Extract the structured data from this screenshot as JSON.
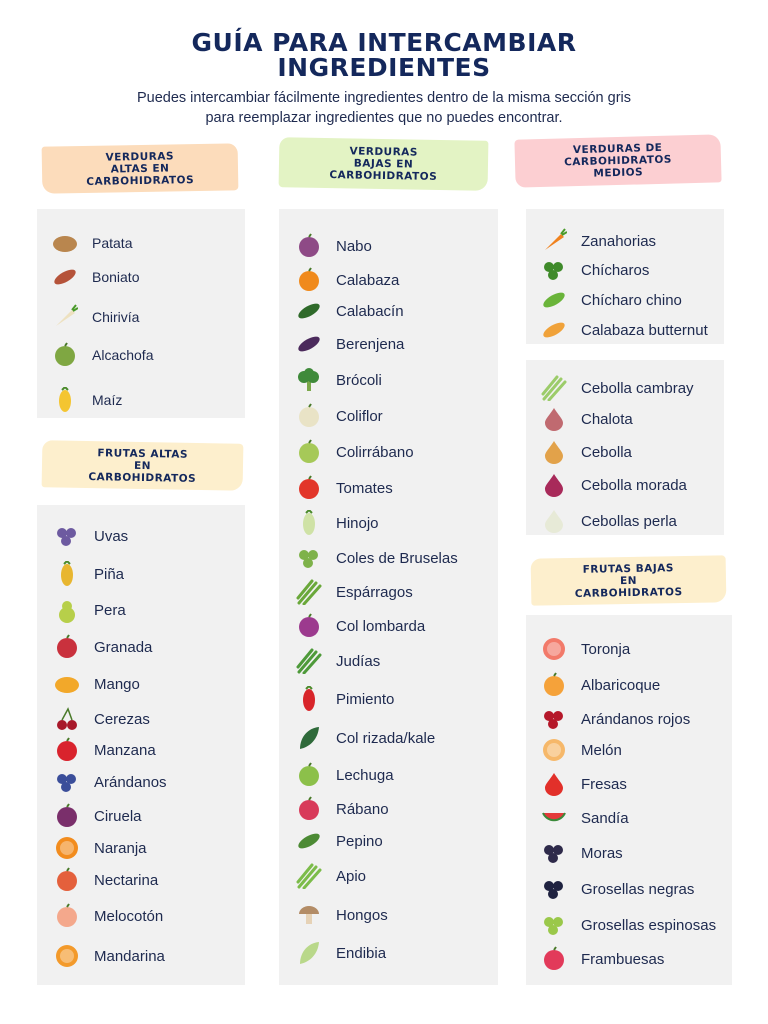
{
  "title": "GUÍA PARA INTERCAMBIAR\nINGREDIENTES",
  "title_line1": "GUÍA PARA INTERCAMBIAR",
  "title_line2": "INGREDIENTES",
  "subtitle_line1": "Puedes intercambiar fácilmente ingredientes dentro de la misma sección gris",
  "subtitle_line2": "para reemplazar ingredientes que no puedes encontrar.",
  "sections": {
    "verduras_altas": {
      "tag": "VERDURAS\nALTAS EN\nCARBOHIDRATOS",
      "items": [
        {
          "label": "Patata",
          "icon": "potato-icon",
          "color": "#b9864e"
        },
        {
          "label": "Boniato",
          "icon": "sweet-potato-icon",
          "color": "#b5533a"
        },
        {
          "label": "Chirivía",
          "icon": "parsnip-icon",
          "color": "#ede1c0"
        },
        {
          "label": "Alcachofa",
          "icon": "artichoke-icon",
          "color": "#7fa742"
        },
        {
          "label": "Maíz",
          "icon": "corn-icon",
          "color": "#f4c531"
        }
      ]
    },
    "frutas_altas": {
      "tag": "FRUTAS ALTAS\nEN\nCARBOHIDRATOS",
      "items": [
        {
          "label": "Uvas",
          "icon": "grapes-icon",
          "color": "#6d5aa0"
        },
        {
          "label": "Piña",
          "icon": "pineapple-icon",
          "color": "#e8b630"
        },
        {
          "label": "Pera",
          "icon": "pear-icon",
          "color": "#b7cf4a"
        },
        {
          "label": "Granada",
          "icon": "pomegranate-icon",
          "color": "#c9313d"
        },
        {
          "label": "Mango",
          "icon": "mango-icon",
          "color": "#f2a82a"
        },
        {
          "label": "Cerezas",
          "icon": "cherries-icon",
          "color": "#a8182a"
        },
        {
          "label": "Manzana",
          "icon": "apple-icon",
          "color": "#d9232d"
        },
        {
          "label": "Arándanos",
          "icon": "blueberries-icon",
          "color": "#3b4e9a"
        },
        {
          "label": "Ciruela",
          "icon": "plum-icon",
          "color": "#7a2f6b"
        },
        {
          "label": "Naranja",
          "icon": "orange-icon",
          "color": "#f28c1e"
        },
        {
          "label": "Nectarina",
          "icon": "nectarine-icon",
          "color": "#e4603c"
        },
        {
          "label": "Melocotón",
          "icon": "peach-icon",
          "color": "#f4a88c"
        },
        {
          "label": "Mandarina",
          "icon": "mandarin-icon",
          "color": "#f39a2b"
        }
      ]
    },
    "verduras_bajas": {
      "tag": "VERDURAS\nBAJAS EN\nCARBOHIDRATOS",
      "items": [
        {
          "label": "Nabo",
          "icon": "turnip-icon",
          "color": "#8e4a86"
        },
        {
          "label": "Calabaza",
          "icon": "pumpkin-icon",
          "color": "#f08a1c"
        },
        {
          "label": "Calabacín",
          "icon": "zucchini-icon",
          "color": "#2f6a2a"
        },
        {
          "label": "Berenjena",
          "icon": "eggplant-icon",
          "color": "#4b2a5c"
        },
        {
          "label": "Brócoli",
          "icon": "broccoli-icon",
          "color": "#3f8a3a"
        },
        {
          "label": "Coliflor",
          "icon": "cauliflower-icon",
          "color": "#e9e3c6"
        },
        {
          "label": "Colirrábano",
          "icon": "kohlrabi-icon",
          "color": "#a6c958"
        },
        {
          "label": "Tomates",
          "icon": "tomato-icon",
          "color": "#e2362a"
        },
        {
          "label": "Hinojo",
          "icon": "fennel-icon",
          "color": "#cfe2a6"
        },
        {
          "label": "Coles de Bruselas",
          "icon": "brussels-sprouts-icon",
          "color": "#7eb24a"
        },
        {
          "label": "Espárragos",
          "icon": "asparagus-icon",
          "color": "#6aa83a"
        },
        {
          "label": "Col lombarda",
          "icon": "red-cabbage-icon",
          "color": "#9c3a8e"
        },
        {
          "label": "Judías",
          "icon": "green-beans-icon",
          "color": "#4e9a3a"
        },
        {
          "label": "Pimiento",
          "icon": "pepper-icon",
          "color": "#d8252a"
        },
        {
          "label": "Col rizada/kale",
          "icon": "kale-icon",
          "color": "#2f6a3a"
        },
        {
          "label": "Lechuga",
          "icon": "lettuce-icon",
          "color": "#8cc04a"
        },
        {
          "label": "Rábano",
          "icon": "radish-icon",
          "color": "#d83a5a"
        },
        {
          "label": "Pepino",
          "icon": "cucumber-icon",
          "color": "#4c8a34"
        },
        {
          "label": "Apio",
          "icon": "celery-icon",
          "color": "#7cbc4a"
        },
        {
          "label": "Hongos",
          "icon": "mushrooms-icon",
          "color": "#b38c66"
        },
        {
          "label": "Endibia",
          "icon": "endive-icon",
          "color": "#b9d88a"
        }
      ]
    },
    "verduras_medios": {
      "tag": "VERDURAS DE\nCARBOHIDRATOS\nMEDIOS",
      "items": [
        {
          "label": "Zanahorias",
          "icon": "carrot-icon",
          "color": "#f0821e"
        },
        {
          "label": "Chícharos",
          "icon": "peas-icon",
          "color": "#3f8a2a"
        },
        {
          "label": "Chícharo chino",
          "icon": "snow-pea-icon",
          "color": "#6ab43a"
        },
        {
          "label": "Calabaza butternut",
          "icon": "butternut-squash-icon",
          "color": "#f0a23a"
        }
      ]
    },
    "cebollas": {
      "items": [
        {
          "label": "Cebolla cambray",
          "icon": "spring-onion-icon",
          "color": "#9ccc6a"
        },
        {
          "label": "Chalota",
          "icon": "shallot-icon",
          "color": "#c06a70"
        },
        {
          "label": "Cebolla",
          "icon": "onion-icon",
          "color": "#e2a24a"
        },
        {
          "label": "Cebolla morada",
          "icon": "red-onion-icon",
          "color": "#a82a5a"
        },
        {
          "label": "Cebollas perla",
          "icon": "pearl-onion-icon",
          "color": "#e7ead7"
        }
      ]
    },
    "frutas_bajas": {
      "tag": "FRUTAS BAJAS\nEN\nCARBOHIDRATOS",
      "items": [
        {
          "label": "Toronja",
          "icon": "grapefruit-icon",
          "color": "#f27a6a"
        },
        {
          "label": "Albaricoque",
          "icon": "apricot-icon",
          "color": "#f5a23a"
        },
        {
          "label": "Arándanos rojos",
          "icon": "cranberries-icon",
          "color": "#b5182a"
        },
        {
          "label": "Melón",
          "icon": "melon-icon",
          "color": "#f6b86a"
        },
        {
          "label": "Fresas",
          "icon": "strawberry-icon",
          "color": "#e2302a"
        },
        {
          "label": "Sandía",
          "icon": "watermelon-icon",
          "color": "#e33a3a"
        },
        {
          "label": "Moras",
          "icon": "blackberries-icon",
          "color": "#2e2a4a"
        },
        {
          "label": "Grosellas negras",
          "icon": "blackcurrants-icon",
          "color": "#1f2240"
        },
        {
          "label": "Grosellas espinosas",
          "icon": "gooseberries-icon",
          "color": "#9ac84a"
        },
        {
          "label": "Frambuesas",
          "icon": "raspberries-icon",
          "color": "#e23a5a"
        }
      ]
    }
  }
}
